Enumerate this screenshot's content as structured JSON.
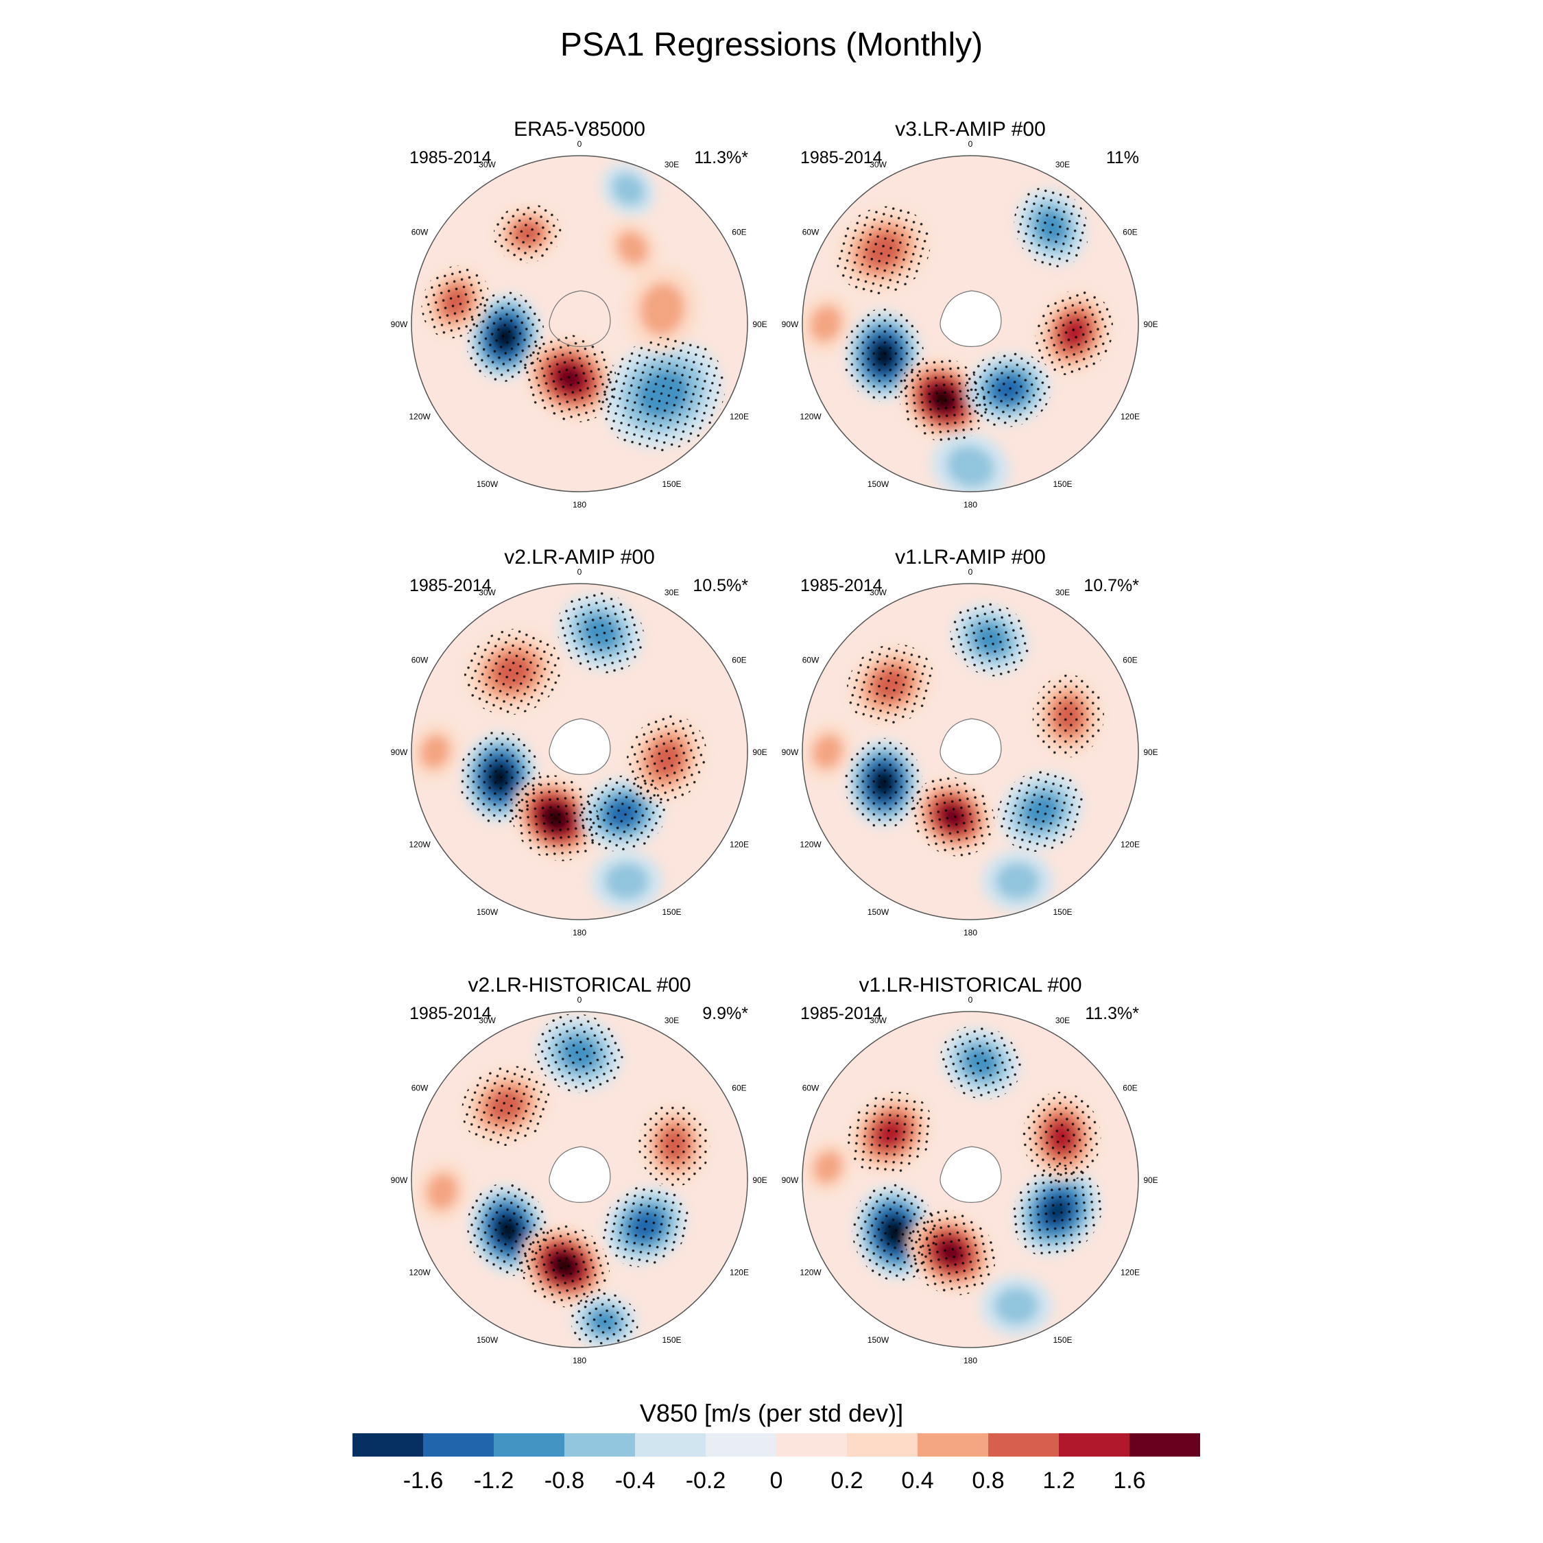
{
  "title": "PSA1 Regressions (Monthly)",
  "panels": [
    {
      "name": "ERA5-V85000",
      "period": "1985-2014",
      "pct": "11.3%*"
    },
    {
      "name": "v3.LR-AMIP  #00",
      "period": "1985-2014",
      "pct": "11%"
    },
    {
      "name": "v2.LR-AMIP  #00",
      "period": "1985-2014",
      "pct": "10.5%*"
    },
    {
      "name": "v1.LR-AMIP  #00",
      "period": "1985-2014",
      "pct": "10.7%*"
    },
    {
      "name": "v2.LR-HISTORICAL  #00",
      "period": "1985-2014",
      "pct": "9.9%*"
    },
    {
      "name": "v1.LR-HISTORICAL  #00",
      "period": "1985-2014",
      "pct": "11.3%*"
    }
  ],
  "lon_labels": [
    "0",
    "30E",
    "60E",
    "90E",
    "120E",
    "150E",
    "180",
    "150W",
    "120W",
    "90W",
    "60W",
    "30W"
  ],
  "colorbar": {
    "label": "V850 [m/s (per std dev)]",
    "tick_labels": [
      "-1.6",
      "-1.2",
      "-0.8",
      "-0.4",
      "-0.2",
      "0",
      "0.2",
      "0.4",
      "0.8",
      "1.2",
      "1.6"
    ],
    "colors": [
      "#053061",
      "#2166ac",
      "#4393c3",
      "#92c5de",
      "#d1e5f0",
      "#e8eef4",
      "#fbe5dc",
      "#fddbc7",
      "#f4a582",
      "#d6604d",
      "#b2182b",
      "#67001f"
    ]
  }
}
